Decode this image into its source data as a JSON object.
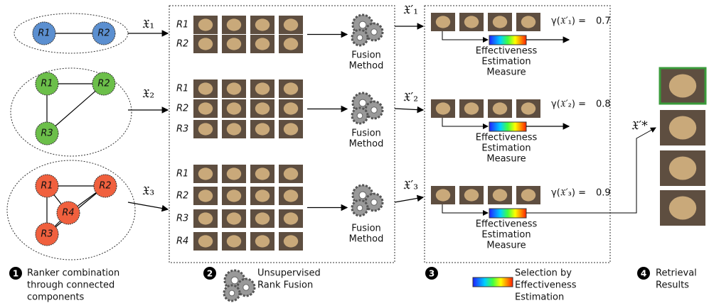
{
  "groups": [
    {
      "symbol": "𝔛₁",
      "nodes": [
        "R1",
        "R2"
      ],
      "rows": [
        "R1",
        "R2"
      ],
      "fusion": [
        "Fusion",
        "Method"
      ],
      "fused_symbol": "𝔛′₁",
      "measure": [
        "Effectiveness",
        "Estimation",
        "Measure"
      ],
      "gamma_label": "γ(𝔛′₁) =",
      "gamma": 0.7
    },
    {
      "symbol": "𝔛₂",
      "nodes": [
        "R1",
        "R2",
        "R3"
      ],
      "rows": [
        "R1",
        "R2",
        "R3"
      ],
      "fusion": [
        "Fusion",
        "Method"
      ],
      "fused_symbol": "𝔛′₂",
      "measure": [
        "Effectiveness",
        "Estimation",
        "Measure"
      ],
      "gamma_label": "γ(𝔛′₂) =",
      "gamma": 0.8
    },
    {
      "symbol": "𝔛₃",
      "nodes": [
        "R1",
        "R2",
        "R4",
        "R3"
      ],
      "rows": [
        "R1",
        "R2",
        "R3",
        "R4"
      ],
      "fusion": [
        "Fusion",
        "Method"
      ],
      "fused_symbol": "𝔛′₃",
      "measure": [
        "Effectiveness",
        "Estimation",
        "Measure"
      ],
      "gamma_label": "γ(𝔛′₃) =",
      "gamma": 0.9
    }
  ],
  "result_symbol": "𝔛′*",
  "steps": [
    {
      "number": 1,
      "lines": [
        "Ranker combination",
        "through connected",
        "components"
      ]
    },
    {
      "number": 2,
      "lines": [
        "Unsupervised",
        "Rank Fusion"
      ]
    },
    {
      "number": 3,
      "lines": [
        "Selection by",
        "Effectiveness",
        "Estimation"
      ]
    },
    {
      "number": 4,
      "lines": [
        "Retrieval",
        "Results"
      ]
    }
  ]
}
